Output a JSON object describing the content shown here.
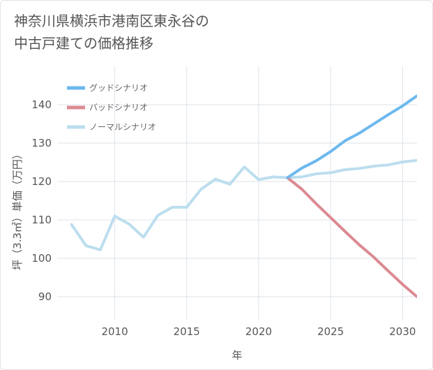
{
  "title_line1": "神奈川県横浜市港南区東永谷の",
  "title_line2": "中古戸建ての価格推移",
  "chart_data": {
    "type": "line",
    "xlabel": "年",
    "ylabel": "坪（3.3㎡）単価（万円）",
    "xlim": [
      2006,
      2031
    ],
    "ylim": [
      84,
      150
    ],
    "xticks": [
      2010,
      2015,
      2020,
      2025,
      2030
    ],
    "yticks": [
      90,
      100,
      110,
      120,
      130,
      140
    ],
    "grid": true,
    "legend_position": "top-left",
    "series": [
      {
        "name": "グッドシナリオ",
        "color": "#6cb8ee",
        "x": [
          2022,
          2023,
          2024,
          2025,
          2026,
          2027,
          2028,
          2029,
          2030,
          2031
        ],
        "values": [
          121.0,
          123.5,
          125.4,
          127.8,
          130.6,
          132.6,
          135.0,
          137.4,
          139.7,
          142.3
        ]
      },
      {
        "name": "バッドシナリオ",
        "color": "#dc8a92",
        "x": [
          2022,
          2023,
          2024,
          2025,
          2026,
          2027,
          2028,
          2029,
          2030,
          2031
        ],
        "values": [
          121.0,
          118.0,
          114.2,
          110.6,
          107.0,
          103.5,
          100.3,
          96.7,
          93.2,
          90.0
        ]
      },
      {
        "name": "ノーマルシナリオ",
        "color": "#bcdeee",
        "x": [
          2007,
          2008,
          2009,
          2010,
          2011,
          2012,
          2013,
          2014,
          2015,
          2016,
          2017,
          2018,
          2019,
          2020,
          2021,
          2022,
          2023,
          2024,
          2025,
          2026,
          2027,
          2028,
          2029,
          2030,
          2031
        ],
        "values": [
          108.8,
          103.3,
          102.2,
          111.0,
          108.9,
          105.5,
          111.2,
          113.3,
          113.3,
          118.0,
          120.6,
          119.3,
          123.8,
          120.5,
          121.2,
          121.0,
          121.2,
          122.0,
          122.3,
          123.1,
          123.4,
          124.0,
          124.3,
          125.1,
          125.5
        ]
      }
    ]
  }
}
